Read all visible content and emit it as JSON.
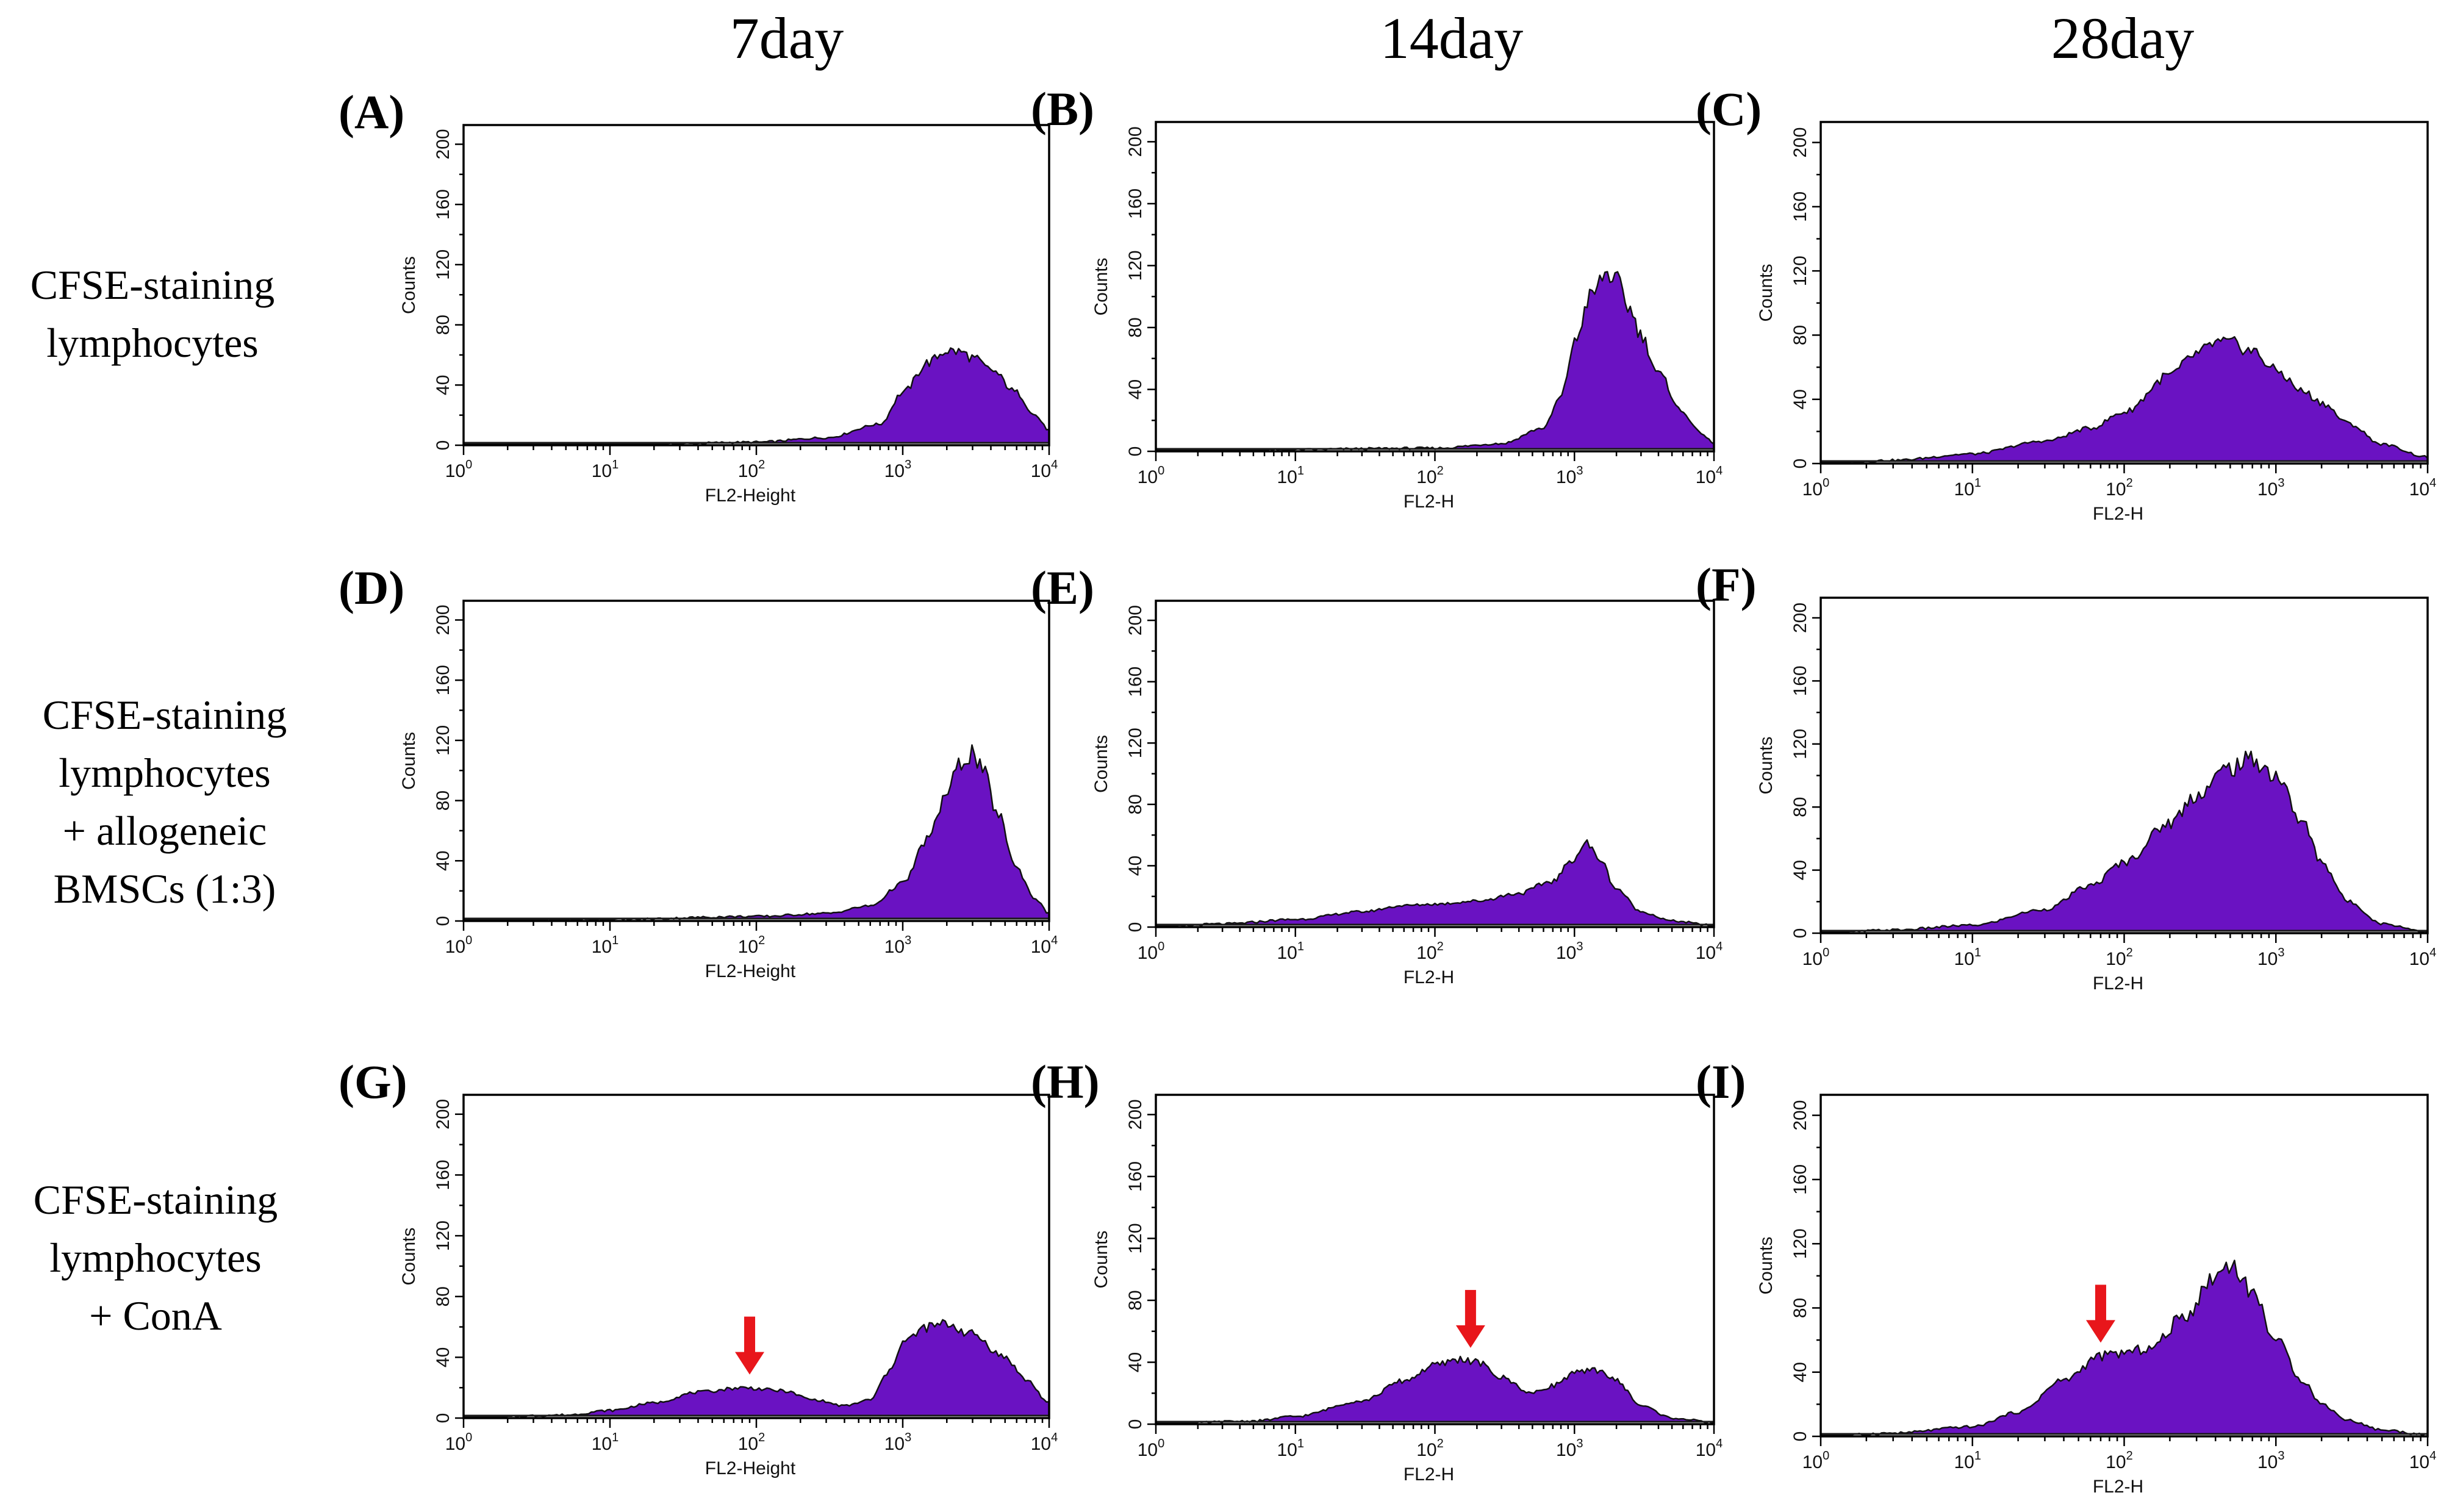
{
  "figure": {
    "column_titles": [
      "7day",
      "14day",
      "28day"
    ],
    "row_labels": [
      [
        "CFSE-staining",
        "lymphocytes"
      ],
      [
        "CFSE-staining",
        "lymphocytes",
        "+ allogeneic",
        "BMSCs (1:3)"
      ],
      [
        "CFSE-staining",
        "lymphocytes",
        "+ ConA"
      ]
    ],
    "colors": {
      "histogram_fill": "#6a12c2",
      "histogram_outline": "#111111",
      "arrow": "#e8161b"
    }
  },
  "chart_data": [
    {
      "id": "A",
      "panel_label": "(A)",
      "type": "area",
      "column": "7day",
      "row": "CFSE-staining lymphocytes",
      "xlabel": "FL2-Height",
      "ylabel": "Counts",
      "xscale": "log",
      "xlim": [
        1,
        10000
      ],
      "ylim": [
        0,
        200
      ],
      "xticks": [
        "0",
        "1",
        "2",
        "3",
        "4"
      ],
      "yticks": [
        0,
        40,
        80,
        120,
        160,
        200
      ],
      "series": [
        {
          "name": "CFSE",
          "x": [
            1,
            10,
            100,
            300,
            700,
            1000,
            1500,
            2000,
            2500,
            3000,
            4000,
            6000,
            8000,
            10000
          ],
          "values": [
            0,
            0,
            2,
            5,
            14,
            35,
            55,
            63,
            62,
            58,
            50,
            35,
            20,
            10
          ]
        }
      ],
      "arrow_at": null
    },
    {
      "id": "B",
      "panel_label": "(B)",
      "type": "area",
      "column": "14day",
      "row": "CFSE-staining lymphocytes",
      "xlabel": "FL2-H",
      "ylabel": "Counts",
      "xscale": "log",
      "xlim": [
        1,
        10000
      ],
      "ylim": [
        0,
        200
      ],
      "xticks": [
        "0",
        "1",
        "2",
        "3",
        "4"
      ],
      "yticks": [
        0,
        40,
        80,
        120,
        160,
        200
      ],
      "series": [
        {
          "name": "CFSE",
          "x": [
            1,
            100,
            300,
            600,
            800,
            1000,
            1300,
            1700,
            2000,
            2500,
            3000,
            4000,
            6000,
            8000,
            10000
          ],
          "values": [
            0,
            2,
            5,
            15,
            35,
            70,
            100,
            115,
            110,
            92,
            75,
            50,
            25,
            12,
            5
          ]
        }
      ],
      "arrow_at": null
    },
    {
      "id": "C",
      "panel_label": "(C)",
      "type": "area",
      "column": "28day",
      "row": "CFSE-staining lymphocytes",
      "xlabel": "FL2-H",
      "ylabel": "Counts",
      "xscale": "log",
      "xlim": [
        1,
        10000
      ],
      "ylim": [
        0,
        200
      ],
      "xticks": [
        "0",
        "1",
        "2",
        "3",
        "4"
      ],
      "yticks": [
        0,
        40,
        80,
        120,
        160,
        200
      ],
      "series": [
        {
          "name": "CFSE",
          "x": [
            1,
            3,
            10,
            30,
            60,
            100,
            200,
            300,
            400,
            500,
            700,
            1000,
            1500,
            2000,
            3000,
            5000,
            10000
          ],
          "values": [
            0,
            2,
            6,
            14,
            22,
            32,
            55,
            68,
            75,
            75,
            70,
            58,
            45,
            38,
            25,
            12,
            4
          ]
        }
      ],
      "arrow_at": null
    },
    {
      "id": "D",
      "panel_label": "(D)",
      "type": "area",
      "column": "7day",
      "row": "CFSE-staining lymphocytes + allogeneic BMSCs (1:3)",
      "xlabel": "FL2-Height",
      "ylabel": "Counts",
      "xscale": "log",
      "xlim": [
        1,
        10000
      ],
      "ylim": [
        0,
        200
      ],
      "xticks": [
        "0",
        "1",
        "2",
        "3",
        "4"
      ],
      "yticks": [
        0,
        40,
        80,
        120,
        160,
        200
      ],
      "series": [
        {
          "name": "CFSE",
          "x": [
            1,
            10,
            100,
            300,
            600,
            1000,
            1500,
            2000,
            2500,
            3000,
            3500,
            4500,
            6000,
            8000,
            10000
          ],
          "values": [
            0,
            1,
            3,
            5,
            10,
            25,
            55,
            85,
            105,
            112,
            100,
            70,
            35,
            15,
            5
          ]
        }
      ],
      "arrow_at": null
    },
    {
      "id": "E",
      "panel_label": "(E)",
      "type": "area",
      "column": "14day",
      "row": "CFSE-staining lymphocytes + allogeneic BMSCs (1:3)",
      "xlabel": "FL2-H",
      "ylabel": "Counts",
      "xscale": "log",
      "xlim": [
        1,
        10000
      ],
      "ylim": [
        0,
        200
      ],
      "xticks": [
        "0",
        "1",
        "2",
        "3",
        "4"
      ],
      "yticks": [
        0,
        40,
        80,
        120,
        160,
        200
      ],
      "series": [
        {
          "name": "CFSE",
          "x": [
            1,
            3,
            10,
            30,
            60,
            100,
            200,
            400,
            700,
            1000,
            1200,
            1500,
            2000,
            3000,
            5000,
            10000
          ],
          "values": [
            0,
            2,
            5,
            10,
            14,
            15,
            17,
            22,
            30,
            45,
            55,
            45,
            25,
            10,
            4,
            1
          ]
        }
      ],
      "arrow_at": null
    },
    {
      "id": "F",
      "panel_label": "(F)",
      "type": "area",
      "column": "28day",
      "row": "CFSE-staining lymphocytes + allogeneic BMSCs (1:3)",
      "xlabel": "FL2-H",
      "ylabel": "Counts",
      "xscale": "log",
      "xlim": [
        1,
        10000
      ],
      "ylim": [
        0,
        200
      ],
      "xticks": [
        "0",
        "1",
        "2",
        "3",
        "4"
      ],
      "yticks": [
        0,
        40,
        80,
        120,
        160,
        200
      ],
      "series": [
        {
          "name": "CFSE",
          "x": [
            1,
            3,
            10,
            30,
            60,
            100,
            200,
            300,
            500,
            700,
            1000,
            1500,
            2000,
            3000,
            5000,
            10000
          ],
          "values": [
            0,
            2,
            5,
            15,
            30,
            45,
            70,
            88,
            105,
            110,
            100,
            70,
            45,
            20,
            6,
            1
          ]
        }
      ],
      "arrow_at": null
    },
    {
      "id": "G",
      "panel_label": "(G)",
      "type": "area",
      "column": "7day",
      "row": "CFSE-staining lymphocytes + ConA",
      "xlabel": "FL2-Height",
      "ylabel": "Counts",
      "xscale": "log",
      "xlim": [
        1,
        10000
      ],
      "ylim": [
        0,
        200
      ],
      "xticks": [
        "0",
        "1",
        "2",
        "3",
        "4"
      ],
      "yticks": [
        0,
        40,
        80,
        120,
        160,
        200
      ],
      "series": [
        {
          "name": "CFSE",
          "x": [
            1,
            5,
            10,
            20,
            40,
            80,
            150,
            250,
            400,
            600,
            800,
            1000,
            1500,
            2000,
            3000,
            5000,
            7000,
            10000
          ],
          "values": [
            0,
            2,
            5,
            10,
            17,
            20,
            18,
            12,
            8,
            12,
            30,
            50,
            60,
            62,
            55,
            40,
            25,
            10
          ]
        }
      ],
      "arrow_at": 90
    },
    {
      "id": "H",
      "panel_label": "(H)",
      "type": "area",
      "column": "14day",
      "row": "CFSE-staining lymphocytes + ConA",
      "xlabel": "FL2-H",
      "ylabel": "Counts",
      "xscale": "log",
      "xlim": [
        1,
        10000
      ],
      "ylim": [
        0,
        200
      ],
      "xticks": [
        "0",
        "1",
        "2",
        "3",
        "4"
      ],
      "yticks": [
        0,
        40,
        80,
        120,
        160,
        200
      ],
      "series": [
        {
          "name": "CFSE",
          "x": [
            1,
            5,
            10,
            30,
            60,
            100,
            150,
            200,
            300,
            500,
            700,
            1000,
            1500,
            2000,
            3000,
            5000,
            10000
          ],
          "values": [
            0,
            2,
            5,
            15,
            28,
            38,
            42,
            40,
            30,
            20,
            25,
            33,
            35,
            28,
            12,
            4,
            1
          ]
        }
      ],
      "arrow_at": 180
    },
    {
      "id": "I",
      "panel_label": "(I)",
      "type": "area",
      "column": "28day",
      "row": "CFSE-staining lymphocytes + ConA",
      "xlabel": "FL2-H",
      "ylabel": "Counts",
      "xscale": "log",
      "xlim": [
        1,
        10000
      ],
      "ylim": [
        0,
        200
      ],
      "xticks": [
        "0",
        "1",
        "2",
        "3",
        "4"
      ],
      "yticks": [
        0,
        40,
        80,
        120,
        160,
        200
      ],
      "series": [
        {
          "name": "CFSE",
          "x": [
            1,
            3,
            10,
            20,
            40,
            70,
            100,
            150,
            250,
            400,
            500,
            700,
            1000,
            1500,
            2000,
            3000,
            5000,
            10000
          ],
          "values": [
            0,
            2,
            6,
            15,
            35,
            50,
            52,
            55,
            75,
            100,
            108,
            90,
            60,
            35,
            20,
            10,
            4,
            1
          ]
        }
      ],
      "arrow_at": 70
    }
  ]
}
